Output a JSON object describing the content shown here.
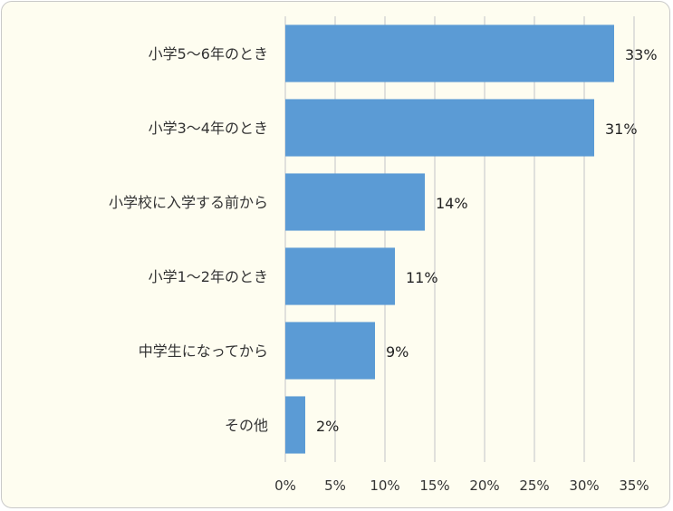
{
  "chart_data": {
    "type": "bar",
    "orientation": "horizontal",
    "categories": [
      "小学5～6年のとき",
      "小学3～4年のとき",
      "小学校に入学する前から",
      "小学1～2年のとき",
      "中学生になってから",
      "その他"
    ],
    "values": [
      33,
      31,
      14,
      11,
      9,
      2
    ],
    "data_labels": [
      "33%",
      "31%",
      "14%",
      "11%",
      "9%",
      "2%"
    ],
    "x_ticks": [
      "0%",
      "5%",
      "10%",
      "15%",
      "20%",
      "25%",
      "30%",
      "35%"
    ],
    "xlim": [
      0,
      35
    ],
    "grid": true,
    "legend": "none",
    "title": "",
    "xlabel": "",
    "ylabel": "",
    "colors": {
      "bar": "#5b9bd5",
      "grid": "#d4d4d4",
      "background": "#fefdf0"
    }
  }
}
